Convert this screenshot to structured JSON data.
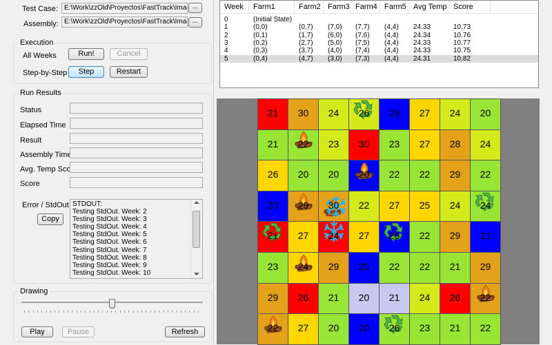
{
  "test": {
    "test_case_label": "Test Case:",
    "test_case_value": "E:\\Work\\zzOld\\Proyectos\\FastTrack\\Imagin",
    "assembly_label": "Assembly:",
    "assembly_value": "E:\\Work\\zzOld\\Proyectos\\FastTrack\\Imagin",
    "browse_label": "..."
  },
  "execution": {
    "title": "Execution",
    "all_weeks_label": "All Weeks",
    "run_label": "Run!",
    "cancel_label": "Cancel",
    "step_by_step_label": "Step-by-Step",
    "step_label": "Step",
    "restart_label": "Restart"
  },
  "run_results": {
    "title": "Run Results",
    "fields": [
      {
        "label": "Status",
        "value": ""
      },
      {
        "label": "Elapsed Time",
        "value": ""
      },
      {
        "label": "Result",
        "value": ""
      },
      {
        "label": "Assembly Time",
        "value": ""
      },
      {
        "label": "Avg. Temp Score",
        "value": ""
      },
      {
        "label": "Score",
        "value": ""
      }
    ],
    "error_label": "Error / StdOut",
    "copy_label": "Copy",
    "stdout_lines": [
      "STDOUT:",
      "Testing StdOut. Week: 2",
      "Testing StdOut. Week: 3",
      "Testing StdOut. Week: 4",
      "Testing StdOut. Week: 5",
      "Testing StdOut. Week: 6",
      "Testing StdOut. Week: 7",
      "Testing StdOut. Week: 8",
      "Testing StdOut. Week: 9",
      "Testing StdOut. Week: 10"
    ]
  },
  "drawing": {
    "title": "Drawing",
    "slider_value": 0.5,
    "play_label": "Play",
    "pause_label": "Pause",
    "refresh_label": "Refresh"
  },
  "results_table": {
    "columns": [
      "Week",
      "Farm1",
      "Farm2",
      "Farm3",
      "Farm4",
      "Farm5",
      "Avg Temp",
      "Score"
    ],
    "rows": [
      [
        "0",
        "(Initial State)",
        "",
        "",
        "",
        "",
        "",
        ""
      ],
      [
        "1",
        "(0,0)",
        "(0,7)",
        "(7,0)",
        "(7,7)",
        "(4,4)",
        "24.33",
        "10.73"
      ],
      [
        "2",
        "(0,1)",
        "(1,7)",
        "(6,0)",
        "(7,6)",
        "(4,4)",
        "24.34",
        "10.76"
      ],
      [
        "3",
        "(0,2)",
        "(2,7)",
        "(5,0)",
        "(7,5)",
        "(4,4)",
        "24.33",
        "10.77"
      ],
      [
        "4",
        "(0,3)",
        "(3,7)",
        "(4,0)",
        "(7,4)",
        "(4,4)",
        "24.33",
        "10.75"
      ],
      [
        "5",
        "(0,4)",
        "(4,7)",
        "(3,0)",
        "(7,3)",
        "(4,4)",
        "24.31",
        "10.82"
      ]
    ],
    "selected_row": 5
  },
  "grid": {
    "colors": {
      "R": "#ff0000",
      "O": "#e3a21a",
      "Y": "#ffd700",
      "L": "#d4ea1a",
      "G": "#99e536",
      "B": "#0000ff",
      "P": "#c8c8f0"
    },
    "cells": [
      [
        {
          "v": "21",
          "c": "R"
        },
        {
          "v": "30",
          "c": "O"
        },
        {
          "v": "24",
          "c": "L"
        },
        {
          "v": "26",
          "c": "L",
          "i": "recycle"
        },
        {
          "v": "29",
          "c": "B"
        },
        {
          "v": "27",
          "c": "Y"
        },
        {
          "v": "24",
          "c": "L"
        },
        {
          "v": "20",
          "c": "G"
        }
      ],
      [
        {
          "v": "21",
          "c": "G"
        },
        {
          "v": "22",
          "c": "G",
          "i": "fire"
        },
        {
          "v": "23",
          "c": "L"
        },
        {
          "v": "30",
          "c": "R"
        },
        {
          "v": "23",
          "c": "G"
        },
        {
          "v": "27",
          "c": "Y"
        },
        {
          "v": "28",
          "c": "O"
        },
        {
          "v": "24",
          "c": "L"
        }
      ],
      [
        {
          "v": "26",
          "c": "Y"
        },
        {
          "v": "20",
          "c": "G"
        },
        {
          "v": "20",
          "c": "G"
        },
        {
          "v": "20",
          "c": "B",
          "i": "fire"
        },
        {
          "v": "22",
          "c": "G"
        },
        {
          "v": "22",
          "c": "G"
        },
        {
          "v": "29",
          "c": "O"
        },
        {
          "v": "22",
          "c": "G"
        }
      ],
      [
        {
          "v": "23",
          "c": "B"
        },
        {
          "v": "29",
          "c": "O",
          "i": "fire"
        },
        {
          "v": "30",
          "c": "O",
          "i": "fire-snow"
        },
        {
          "v": "22",
          "c": "L"
        },
        {
          "v": "27",
          "c": "Y"
        },
        {
          "v": "25",
          "c": "Y"
        },
        {
          "v": "24",
          "c": "L"
        },
        {
          "v": "24",
          "c": "G",
          "i": "recycle"
        }
      ],
      [
        {
          "v": "21",
          "c": "R",
          "i": "recycle"
        },
        {
          "v": "27",
          "c": "Y"
        },
        {
          "v": "24",
          "c": "R",
          "i": "snow"
        },
        {
          "v": "27",
          "c": "Y"
        },
        {
          "v": "26",
          "c": "B",
          "i": "recycle"
        },
        {
          "v": "22",
          "c": "G"
        },
        {
          "v": "29",
          "c": "O"
        },
        {
          "v": "21",
          "c": "B"
        }
      ],
      [
        {
          "v": "23",
          "c": "G"
        },
        {
          "v": "24",
          "c": "Y",
          "i": "fire"
        },
        {
          "v": "29",
          "c": "O"
        },
        {
          "v": "25",
          "c": "B"
        },
        {
          "v": "22",
          "c": "G"
        },
        {
          "v": "22",
          "c": "G"
        },
        {
          "v": "21",
          "c": "G"
        },
        {
          "v": "29",
          "c": "O"
        }
      ],
      [
        {
          "v": "29",
          "c": "O"
        },
        {
          "v": "26",
          "c": "R"
        },
        {
          "v": "21",
          "c": "G"
        },
        {
          "v": "20",
          "c": "P"
        },
        {
          "v": "21",
          "c": "P"
        },
        {
          "v": "24",
          "c": "L"
        },
        {
          "v": "26",
          "c": "R"
        },
        {
          "v": "22",
          "c": "O",
          "i": "fire"
        }
      ],
      [
        {
          "v": "22",
          "c": "O",
          "i": "fire"
        },
        {
          "v": "27",
          "c": "Y"
        },
        {
          "v": "20",
          "c": "G"
        },
        {
          "v": "20",
          "c": "B"
        },
        {
          "v": "26",
          "c": "G",
          "i": "recycle"
        },
        {
          "v": "23",
          "c": "G"
        },
        {
          "v": "21",
          "c": "G"
        },
        {
          "v": "22",
          "c": "G"
        }
      ]
    ]
  }
}
